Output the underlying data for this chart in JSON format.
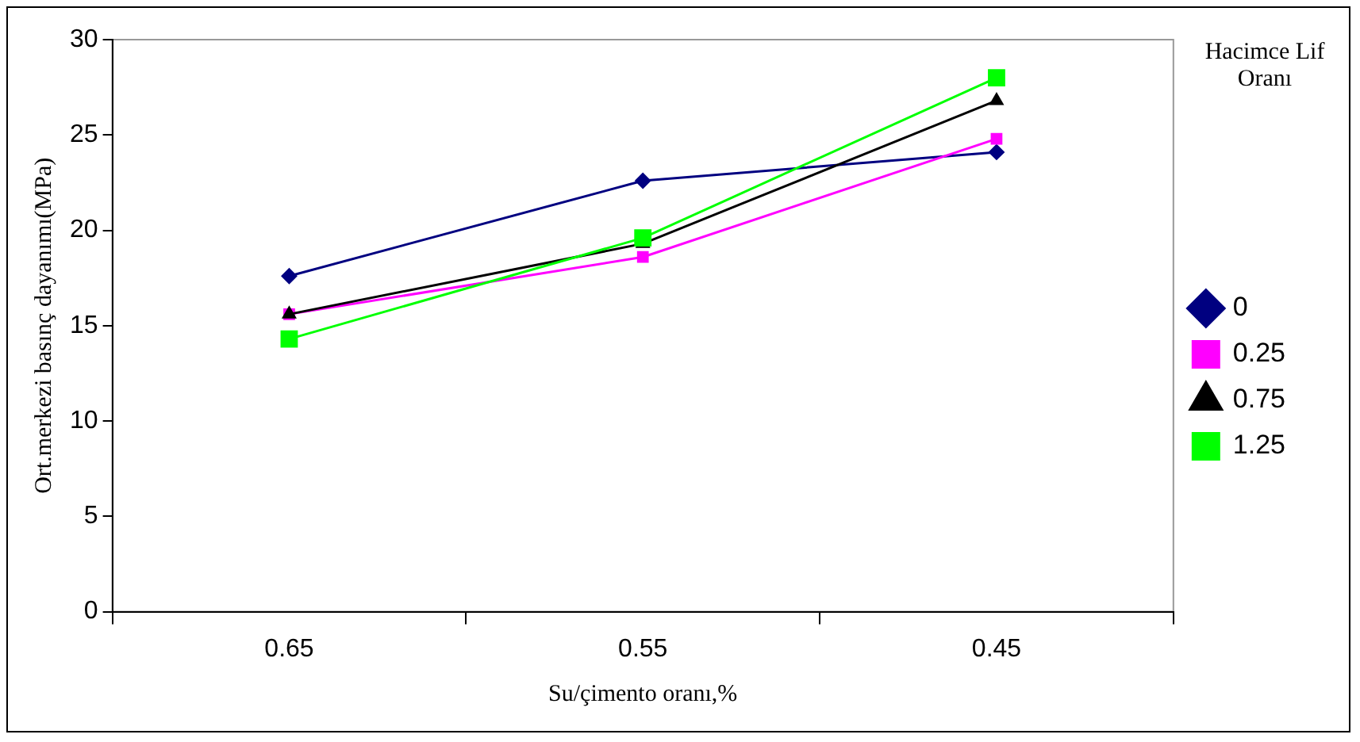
{
  "chart_data": {
    "type": "line",
    "xlabel": "Su/çimento oranı,%",
    "ylabel": "Ort.merkezi basınç dayanımı(MPa)",
    "legend_title": "Hacimce Lif Oranı",
    "legend": "right",
    "grid": false,
    "categories": [
      "0.65",
      "0.55",
      "0.45"
    ],
    "ylim": [
      0,
      30
    ],
    "yticks": [
      0,
      5,
      10,
      15,
      20,
      25,
      30
    ],
    "series": [
      {
        "name": "0",
        "color": "#000080",
        "marker": "diamond",
        "values": [
          17.6,
          22.6,
          24.1
        ]
      },
      {
        "name": "0.25",
        "color": "#ff00ff",
        "marker": "square",
        "values": [
          15.6,
          18.6,
          24.8
        ]
      },
      {
        "name": "0.75",
        "color": "#000000",
        "marker": "triangle",
        "values": [
          15.6,
          19.3,
          26.8
        ]
      },
      {
        "name": "1.25",
        "color": "#00ff00",
        "marker": "square",
        "values": [
          14.3,
          19.6,
          28.0
        ]
      }
    ]
  }
}
